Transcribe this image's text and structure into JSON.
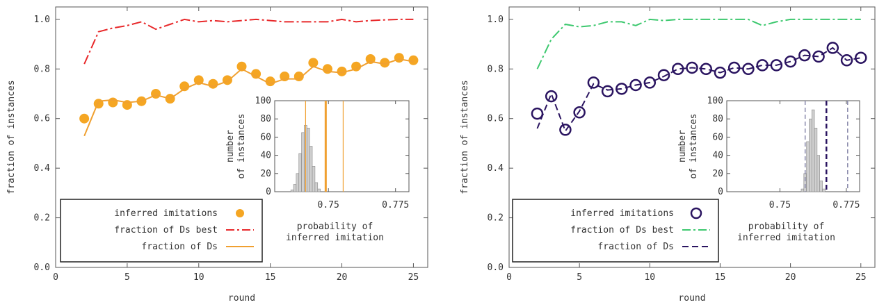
{
  "colors": {
    "left_markers": "#f5a623",
    "left_ds_line": "#f0a030",
    "left_best": "#e8282a",
    "right_markers": "#2a1460",
    "right_ds_line": "#2a1460",
    "right_best": "#3cc86e",
    "hist_fill": "#d0d0d0",
    "left_inset_line": "#f0a030",
    "right_inset_dash": "#2a1460",
    "right_inset_ci": "#8888aa"
  },
  "chart_data": [
    {
      "type": "line",
      "ylabel": "fraction of instances",
      "xlabel": "round",
      "xlim": [
        0,
        26
      ],
      "ylim": [
        0.0,
        1.05
      ],
      "xticks": [
        "0",
        "5",
        "10",
        "15",
        "20",
        "25"
      ],
      "yticks": [
        "0.0",
        "0.2",
        "0.4",
        "0.6",
        "0.8",
        "1.0"
      ],
      "grid": false,
      "legend_position": "bottom-left",
      "x": [
        2,
        3,
        4,
        5,
        6,
        7,
        8,
        9,
        10,
        11,
        12,
        13,
        14,
        15,
        16,
        17,
        18,
        19,
        20,
        21,
        22,
        23,
        24,
        25
      ],
      "series": [
        {
          "name": "inferred imitations",
          "style": "markers",
          "values": [
            0.6,
            0.66,
            0.665,
            0.655,
            0.67,
            0.7,
            0.68,
            0.73,
            0.755,
            0.74,
            0.755,
            0.81,
            0.78,
            0.75,
            0.77,
            0.77,
            0.825,
            0.8,
            0.79,
            0.81,
            0.84,
            0.825,
            0.845,
            0.835
          ]
        },
        {
          "name": "fraction of Ds best",
          "style": "dashdot",
          "values": [
            0.82,
            0.95,
            0.965,
            0.975,
            0.99,
            0.96,
            0.98,
            1.0,
            0.99,
            0.995,
            0.99,
            0.995,
            1.0,
            0.995,
            0.99,
            0.99,
            0.99,
            0.99,
            1.0,
            0.99,
            0.995,
            0.998,
            1.0,
            1.0
          ]
        },
        {
          "name": "fraction of Ds",
          "style": "solid",
          "values": [
            0.53,
            0.67,
            0.675,
            0.665,
            0.67,
            0.695,
            0.68,
            0.72,
            0.745,
            0.73,
            0.75,
            0.8,
            0.77,
            0.74,
            0.76,
            0.76,
            0.81,
            0.79,
            0.785,
            0.8,
            0.83,
            0.82,
            0.84,
            0.83
          ]
        }
      ],
      "inset": {
        "type": "bar",
        "xlabel_line1": "probability of",
        "xlabel_line2": "inferred imitation",
        "ylabel_line1": "number",
        "ylabel_line2": "of instances",
        "xlim": [
          0.73,
          0.78
        ],
        "ylim": [
          0,
          100
        ],
        "xticks": [
          "0.75",
          "0.775"
        ],
        "yticks": [
          "0",
          "20",
          "40",
          "60",
          "80",
          "100"
        ],
        "bin_centers": [
          0.7365,
          0.7375,
          0.7385,
          0.7395,
          0.7405,
          0.7415,
          0.7425,
          0.7435,
          0.7445,
          0.7455,
          0.7465
        ],
        "counts": [
          2,
          8,
          20,
          42,
          65,
          73,
          70,
          50,
          28,
          10,
          3
        ],
        "vlines": [
          {
            "x": 0.7415,
            "style": "thin"
          },
          {
            "x": 0.749,
            "style": "thick"
          },
          {
            "x": 0.7555,
            "style": "thin"
          }
        ]
      }
    },
    {
      "type": "line",
      "ylabel": "fraction of instances",
      "xlabel": "round",
      "xlim": [
        0,
        26
      ],
      "ylim": [
        0.0,
        1.05
      ],
      "xticks": [
        "0",
        "5",
        "10",
        "15",
        "20",
        "25"
      ],
      "yticks": [
        "0.0",
        "0.2",
        "0.4",
        "0.6",
        "0.8",
        "1.0"
      ],
      "grid": false,
      "legend_position": "bottom-left",
      "x": [
        2,
        3,
        4,
        5,
        6,
        7,
        8,
        9,
        10,
        11,
        12,
        13,
        14,
        15,
        16,
        17,
        18,
        19,
        20,
        21,
        22,
        23,
        24,
        25
      ],
      "series": [
        {
          "name": "inferred imitations",
          "style": "markers",
          "values": [
            0.62,
            0.69,
            0.555,
            0.625,
            0.745,
            0.71,
            0.72,
            0.735,
            0.745,
            0.775,
            0.8,
            0.805,
            0.8,
            0.785,
            0.805,
            0.8,
            0.815,
            0.815,
            0.83,
            0.855,
            0.85,
            0.885,
            0.835,
            0.845
          ]
        },
        {
          "name": "fraction of Ds best",
          "style": "dashdot",
          "values": [
            0.8,
            0.92,
            0.98,
            0.97,
            0.975,
            0.99,
            0.99,
            0.975,
            1.0,
            0.995,
            1.0,
            1.0,
            1.0,
            1.0,
            1.0,
            1.0,
            0.975,
            0.99,
            1.0,
            1.0,
            1.0,
            1.0,
            1.0,
            1.0
          ]
        },
        {
          "name": "fraction of Ds",
          "style": "dashed",
          "values": [
            0.56,
            0.7,
            0.55,
            0.63,
            0.74,
            0.715,
            0.72,
            0.735,
            0.745,
            0.77,
            0.8,
            0.805,
            0.8,
            0.785,
            0.805,
            0.8,
            0.815,
            0.815,
            0.83,
            0.855,
            0.85,
            0.885,
            0.835,
            0.845
          ]
        }
      ],
      "inset": {
        "type": "bar",
        "xlabel_line1": "probability of",
        "xlabel_line2": "inferred imitation",
        "ylabel_line1": "number",
        "ylabel_line2": "of instances",
        "xlim": [
          0.73,
          0.78
        ],
        "ylim": [
          0,
          100
        ],
        "xticks": [
          "0.75",
          "0.775"
        ],
        "yticks": [
          "0",
          "20",
          "40",
          "60",
          "80",
          "100"
        ],
        "bin_centers": [
          0.7585,
          0.7595,
          0.7605,
          0.7615,
          0.7625,
          0.7635,
          0.7645,
          0.7655,
          0.7665
        ],
        "counts": [
          3,
          20,
          55,
          80,
          90,
          70,
          40,
          12,
          3
        ],
        "vlines": [
          {
            "x": 0.7595,
            "style": "ci"
          },
          {
            "x": 0.7675,
            "style": "dash"
          },
          {
            "x": 0.7755,
            "style": "ci"
          }
        ]
      }
    }
  ]
}
